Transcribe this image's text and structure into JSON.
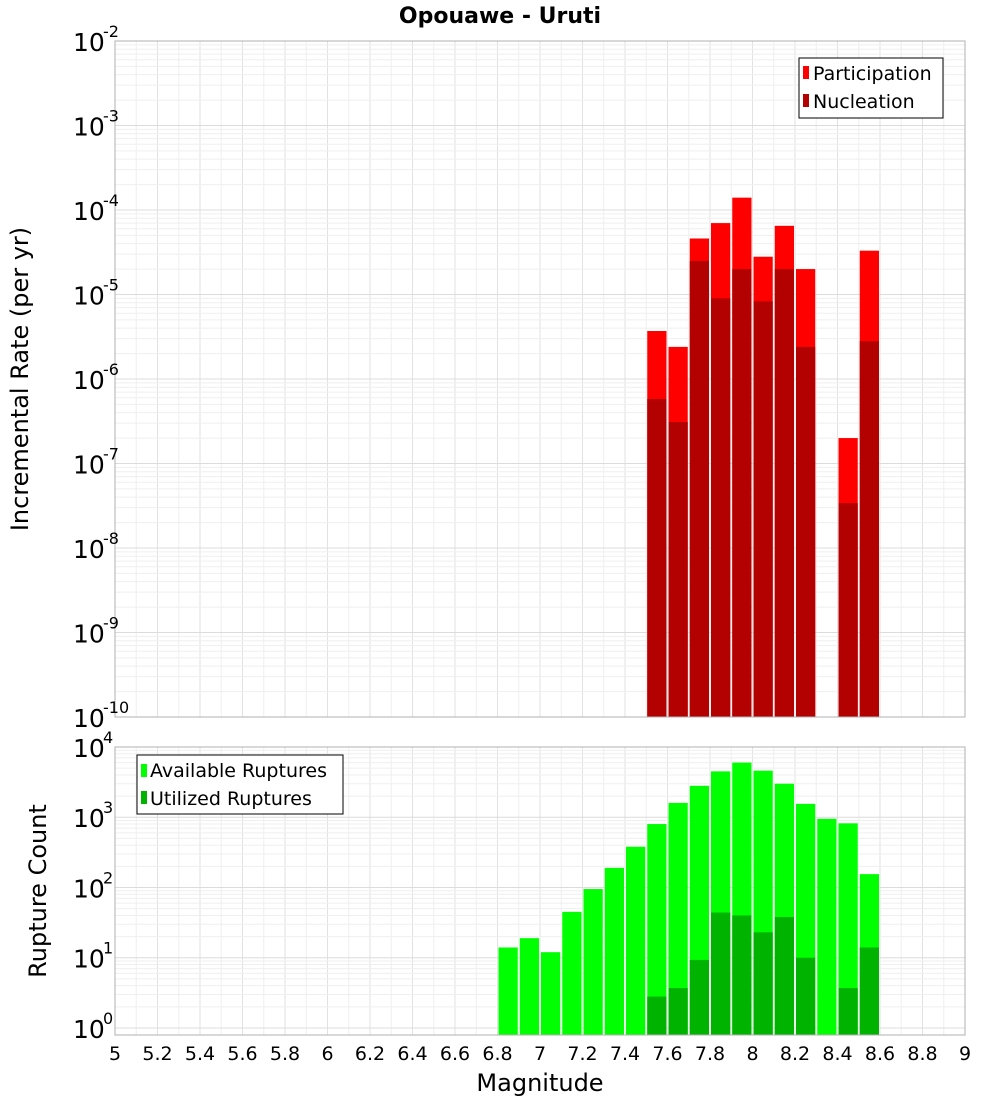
{
  "title": "Opouawe - Uruti",
  "chart_data": [
    {
      "type": "bar",
      "name": "rate-chart",
      "ylabel": "Incremental Rate (per yr)",
      "xlabel": "",
      "xlim": [
        5,
        9
      ],
      "yscale": "log",
      "ylim_exp": [
        -10,
        -2
      ],
      "bin_width": 0.1,
      "legend": [
        {
          "name": "Participation",
          "color": "#ff0000"
        },
        {
          "name": "Nucleation",
          "color": "#b30000"
        }
      ],
      "series": [
        {
          "name": "Participation",
          "color": "#ff0000",
          "x": [
            7.55,
            7.65,
            7.75,
            7.85,
            7.95,
            8.05,
            8.15,
            8.25,
            8.45,
            8.55
          ],
          "values": [
            3.7e-06,
            2.4e-06,
            4.6e-05,
            7e-05,
            0.00014,
            2.8e-05,
            6.5e-05,
            2e-05,
            2e-07,
            3.3e-05
          ]
        },
        {
          "name": "Nucleation",
          "color": "#b30000",
          "x": [
            7.55,
            7.65,
            7.75,
            7.85,
            7.95,
            8.05,
            8.15,
            8.25,
            8.45,
            8.55
          ],
          "values": [
            5.8e-07,
            3.1e-07,
            2.5e-05,
            9e-06,
            2e-05,
            8.3e-06,
            2e-05,
            2.4e-06,
            3.4e-08,
            2.8e-06
          ]
        }
      ]
    },
    {
      "type": "bar",
      "name": "count-chart",
      "ylabel": "Rupture Count",
      "xlabel": "Magnitude",
      "xlim": [
        5,
        9
      ],
      "xticks": [
        "5",
        "5.2",
        "5.4",
        "5.6",
        "5.8",
        "6",
        "6.2",
        "6.4",
        "6.6",
        "6.8",
        "7",
        "7.2",
        "7.4",
        "7.6",
        "7.8",
        "8",
        "8.2",
        "8.4",
        "8.6",
        "8.8",
        "9"
      ],
      "yscale": "log",
      "ylim_exp": [
        -0.1,
        4
      ],
      "bin_width": 0.1,
      "legend": [
        {
          "name": "Available Ruptures",
          "color": "#00ff00"
        },
        {
          "name": "Utilized Ruptures",
          "color": "#00b300"
        }
      ],
      "series": [
        {
          "name": "Available Ruptures",
          "color": "#00ff00",
          "x": [
            6.85,
            6.95,
            7.05,
            7.15,
            7.25,
            7.35,
            7.45,
            7.55,
            7.65,
            7.75,
            7.85,
            7.95,
            8.05,
            8.15,
            8.25,
            8.35,
            8.45,
            8.55
          ],
          "values": [
            14,
            19,
            12,
            45,
            95,
            190,
            380,
            800,
            1600,
            2800,
            4500,
            6000,
            4600,
            3000,
            1550,
            950,
            820,
            155
          ]
        },
        {
          "name": "Utilized Ruptures",
          "color": "#00b300",
          "x": [
            7.55,
            7.65,
            7.75,
            7.85,
            7.95,
            8.05,
            8.15,
            8.25,
            8.45,
            8.55
          ],
          "values": [
            2.8,
            3.7,
            9.3,
            44,
            40,
            23,
            38,
            10,
            3.7,
            14
          ]
        }
      ]
    }
  ]
}
